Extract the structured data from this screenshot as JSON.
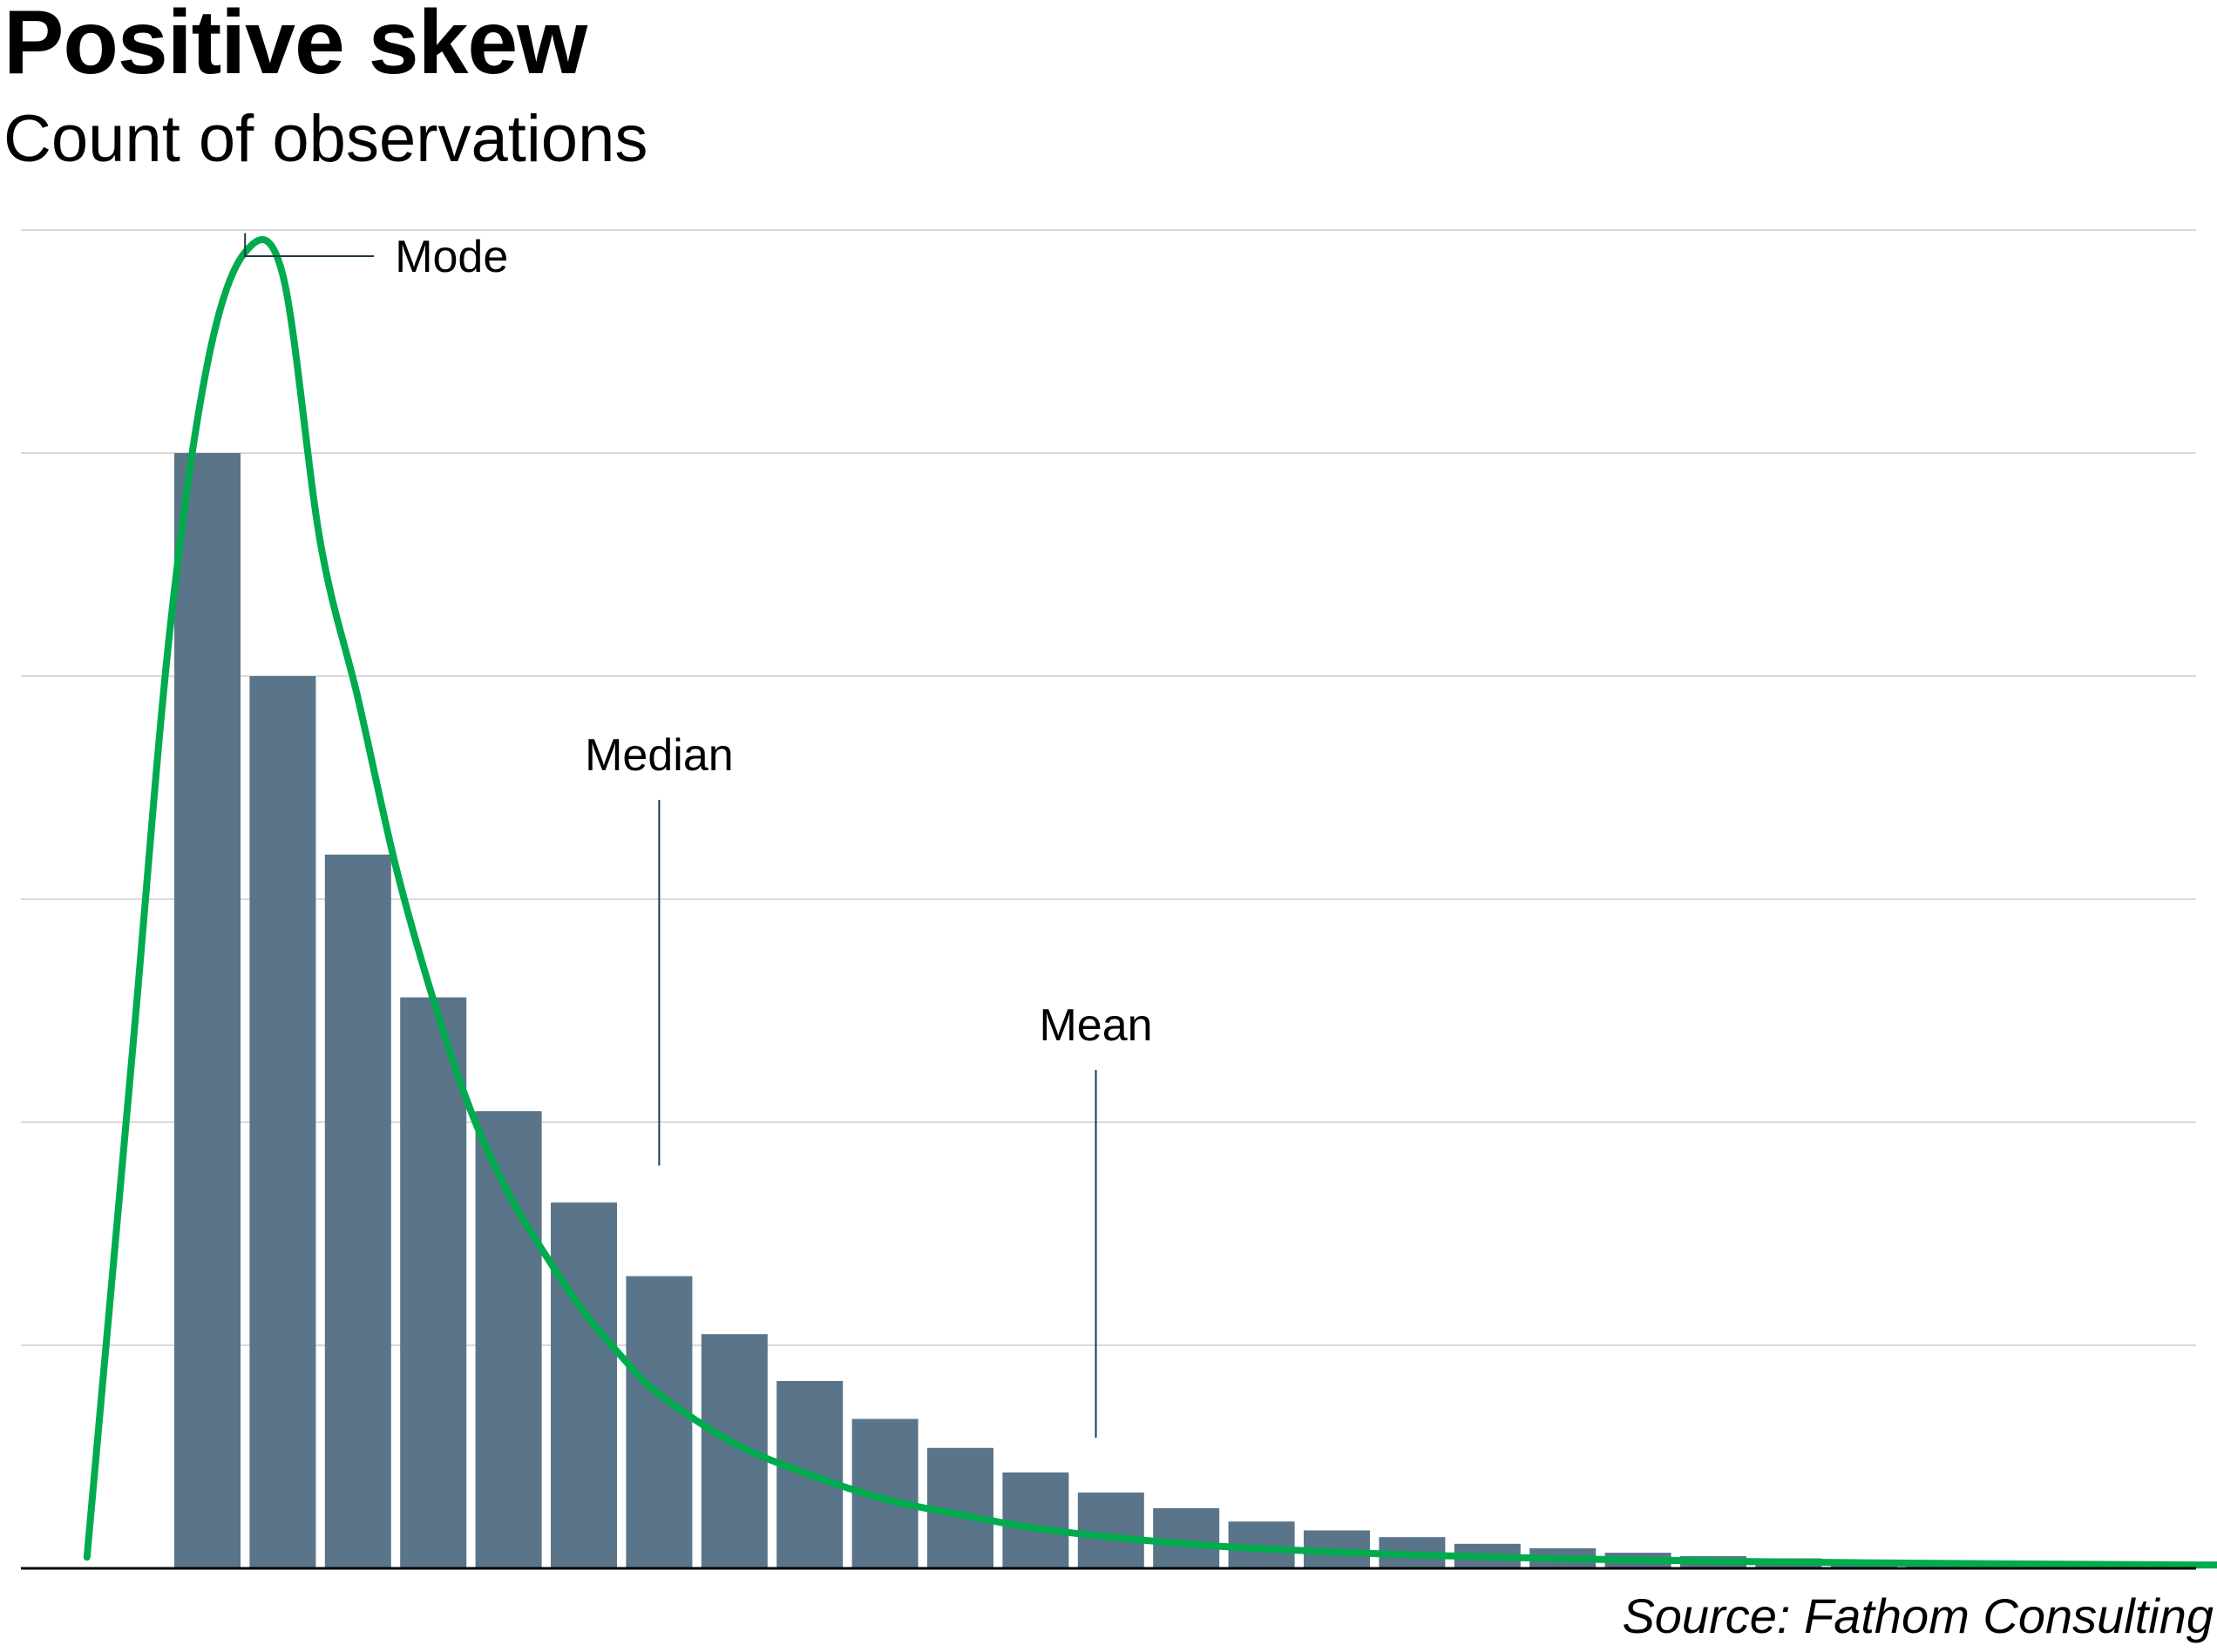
{
  "title": "Positive skew",
  "subtitle": "Count of observations",
  "source": "Source: Fathom Consulting",
  "colors": {
    "bar": "#5a7589",
    "curve": "#00ab4e",
    "grid": "#d9d9d9",
    "axis": "#000000",
    "annotation_line": "#1a3a4a"
  },
  "chart_data": {
    "type": "bar",
    "title": "Positive skew",
    "subtitle": "Count of observations",
    "xlabel": "",
    "ylabel": "",
    "ylim": [
      0,
      6
    ],
    "grid": true,
    "gridlines": [
      1,
      2,
      3,
      4,
      5,
      6
    ],
    "x_axis_labels": false,
    "y_axis_labels": false,
    "categories": [
      1,
      2,
      3,
      4,
      5,
      6,
      7,
      8,
      9,
      10,
      11,
      12,
      13,
      14,
      15,
      16,
      17,
      18,
      19,
      20,
      21,
      22,
      23,
      24,
      25,
      26,
      27,
      28
    ],
    "values": [
      5.0,
      4.0,
      3.2,
      2.56,
      2.05,
      1.64,
      1.31,
      1.05,
      0.84,
      0.67,
      0.54,
      0.43,
      0.34,
      0.27,
      0.21,
      0.17,
      0.14,
      0.11,
      0.09,
      0.07,
      0.055,
      0.045,
      0.035,
      0.028,
      0.022,
      0.018,
      0.014,
      0.011
    ],
    "density_curve": {
      "x": [
        -0.6,
        0.0,
        0.5,
        1.0,
        1.5,
        2.0,
        2.5,
        3.0,
        3.5,
        4.0,
        4.5,
        5.0,
        5.5,
        6.0,
        6.5,
        7.0,
        8.0,
        9.0,
        10.0,
        11.0,
        12.0,
        13.0,
        14.0,
        15.0,
        17.0,
        19.0,
        21.0,
        23.0,
        25.0,
        27.0,
        28.6
      ],
      "y": [
        0.05,
        2.3,
        4.2,
        5.4,
        5.9,
        5.8,
        4.6,
        3.9,
        3.15,
        2.55,
        2.05,
        1.68,
        1.4,
        1.15,
        0.95,
        0.78,
        0.56,
        0.42,
        0.31,
        0.24,
        0.18,
        0.14,
        0.11,
        0.088,
        0.06,
        0.043,
        0.032,
        0.025,
        0.02,
        0.016,
        0.014
      ]
    },
    "annotations": [
      {
        "label": "Mode",
        "x": 1.5,
        "y": 5.9
      },
      {
        "label": "Median",
        "x": 7.0,
        "y": 1.72
      },
      {
        "label": "Mean",
        "x": 12.8,
        "y": 0.5
      }
    ],
    "legend": "none"
  }
}
